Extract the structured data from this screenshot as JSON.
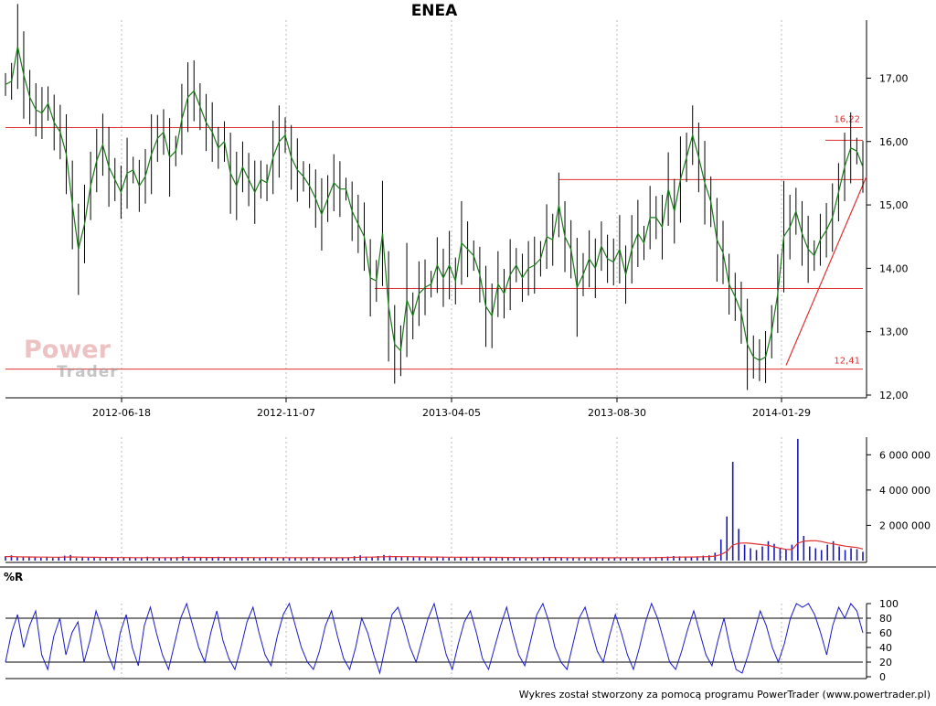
{
  "title": "ENEA",
  "footer": "Wykres został stworzony za pomocą programu PowerTrader (www.powertrader.pl)",
  "logo": {
    "line1": "Power",
    "line2": "Trader"
  },
  "williams_label": "%R",
  "colors": {
    "price": "#000000",
    "price_smooth": "#1a7a1a",
    "level": "#e03030",
    "volume": "#1a1ab4",
    "volume_avg": "#e03030",
    "williams": "#1a1acc",
    "grid": "#b8b8b8"
  },
  "chart_data": [
    {
      "type": "line",
      "name": "price",
      "x_ticks": [
        "2012-06-18",
        "2012-11-07",
        "2013-04-05",
        "2013-08-30",
        "2014-01-29"
      ],
      "y_ticks": [
        "12,00",
        "13,00",
        "14,00",
        "15,00",
        "16,00",
        "17,00"
      ],
      "ylim": [
        12.0,
        17.8
      ],
      "level_labels": [
        "16,22",
        "12,41"
      ],
      "series": [
        {
          "close": [
            16.9,
            16.95,
            17.5,
            17.05,
            16.7,
            16.5,
            16.45,
            16.6,
            16.3,
            16.15,
            15.8,
            15.0,
            14.3,
            14.7,
            15.3,
            15.7,
            15.95,
            15.6,
            15.4,
            15.2,
            15.5,
            15.55,
            15.3,
            15.45,
            15.8,
            16.05,
            16.15,
            15.75,
            15.85,
            16.35,
            16.7,
            16.8,
            16.55,
            16.3,
            16.15,
            15.9,
            16.0,
            15.5,
            15.3,
            15.6,
            15.4,
            15.2,
            15.4,
            15.35,
            15.75,
            16.0,
            16.1,
            15.75,
            15.55,
            15.45,
            15.3,
            15.1,
            14.85,
            15.1,
            15.35,
            15.25,
            15.25,
            14.9,
            14.7,
            14.5,
            13.85,
            13.8,
            14.55,
            13.4,
            12.8,
            12.7,
            13.5,
            13.25,
            13.6,
            13.7,
            13.75,
            14.05,
            13.85,
            14.05,
            13.8,
            14.4,
            14.3,
            14.2,
            13.9,
            13.4,
            13.25,
            13.75,
            13.6,
            13.9,
            14.05,
            13.85,
            14.0,
            14.05,
            14.15,
            14.5,
            14.45,
            15.0,
            14.5,
            14.3,
            13.7,
            13.9,
            14.15,
            14.0,
            14.35,
            14.15,
            14.1,
            14.3,
            13.9,
            14.3,
            14.55,
            14.4,
            14.8,
            14.8,
            14.65,
            15.25,
            14.9,
            15.4,
            15.75,
            16.1,
            15.75,
            15.35,
            15.05,
            14.45,
            14.25,
            13.75,
            13.55,
            13.3,
            12.8,
            12.6,
            12.55,
            12.6,
            13.0,
            13.6,
            14.5,
            14.65,
            14.9,
            14.55,
            14.3,
            14.2,
            14.45,
            14.6,
            14.8,
            15.2,
            15.6,
            15.9,
            15.85,
            15.6
          ]
        },
        {
          "name": "",
          "values": []
        }
      ]
    },
    {
      "type": "bar",
      "name": "volume",
      "y_ticks": [
        "2 000 000",
        "4 000 000",
        "6 000 000"
      ],
      "ylim": [
        0,
        7000000
      ],
      "values": [
        250000,
        300000,
        200000,
        180000,
        220000,
        190000,
        160000,
        210000,
        150000,
        200000,
        280000,
        320000,
        150000,
        200000,
        170000,
        160000,
        140000,
        200000,
        170000,
        150000,
        190000,
        160000,
        150000,
        140000,
        220000,
        170000,
        150000,
        180000,
        160000,
        200000,
        250000,
        210000,
        190000,
        160000,
        150000,
        180000,
        220000,
        150000,
        170000,
        160000,
        200000,
        180000,
        150000,
        170000,
        190000,
        160000,
        140000,
        170000,
        150000,
        180000,
        160000,
        150000,
        200000,
        170000,
        160000,
        150000,
        140000,
        170000,
        190000,
        250000,
        300000,
        220000,
        200000,
        260000,
        320000,
        280000,
        240000,
        200000,
        210000,
        190000,
        180000,
        170000,
        160000,
        200000,
        190000,
        170000,
        160000,
        180000,
        200000,
        220000,
        190000,
        170000,
        160000,
        150000,
        180000,
        170000,
        160000,
        150000,
        140000,
        160000,
        180000,
        210000,
        190000,
        170000,
        160000,
        150000,
        170000,
        160000,
        150000,
        140000,
        160000,
        170000,
        150000,
        160000,
        180000,
        170000,
        160000,
        150000,
        170000,
        190000,
        210000,
        200000,
        230000,
        260000,
        240000,
        220000,
        200000,
        240000,
        280000,
        300000,
        450000,
        1200000,
        2500000,
        5600000,
        1800000,
        900000,
        700000,
        600000,
        800000,
        1100000,
        950000,
        700000,
        650000,
        900000,
        6900000,
        1400000,
        800000,
        700000,
        600000,
        900000,
        1100000,
        800000,
        600000,
        700000,
        650000,
        500000
      ],
      "avg": [
        230000,
        230000,
        220000,
        210000,
        205000,
        200000,
        195000,
        195000,
        190000,
        190000,
        195000,
        205000,
        200000,
        195000,
        190000,
        185000,
        180000,
        178000,
        176000,
        172000,
        172000,
        170000,
        168000,
        166000,
        170000,
        168000,
        165000,
        166000,
        165000,
        168000,
        175000,
        180000,
        182000,
        180000,
        176000,
        175000,
        178000,
        174000,
        172000,
        170000,
        172000,
        172000,
        170000,
        168000,
        170000,
        170000,
        166000,
        166000,
        164000,
        166000,
        165000,
        164000,
        168000,
        168000,
        166000,
        164000,
        162000,
        163000,
        166000,
        175000,
        190000,
        196000,
        198000,
        205000,
        220000,
        226000,
        228000,
        224000,
        222000,
        218000,
        212000,
        206000,
        200000,
        200000,
        198000,
        194000,
        190000,
        188000,
        190000,
        194000,
        194000,
        190000,
        186000,
        182000,
        180000,
        178000,
        175000,
        172000,
        168000,
        166000,
        167000,
        172000,
        174000,
        174000,
        172000,
        168000,
        168000,
        166000,
        164000,
        160000,
        160000,
        162000,
        160000,
        160000,
        163000,
        164000,
        164000,
        162000,
        162000,
        166000,
        172000,
        176000,
        182000,
        192000,
        198000,
        202000,
        202000,
        208000,
        218000,
        230000,
        255000,
        340000,
        520000,
        880000,
        980000,
        1000000,
        980000,
        940000,
        900000,
        860000,
        780000,
        700000,
        640000,
        620000,
        980000,
        1100000,
        1120000,
        1130000,
        1080000,
        1000000,
        950000,
        880000,
        820000,
        780000,
        740000,
        660000
      ]
    },
    {
      "type": "line",
      "name": "%R",
      "y_ticks": [
        "0",
        "20",
        "40",
        "60",
        "80",
        "100"
      ],
      "ylim": [
        0,
        100
      ],
      "levels": [
        20,
        80
      ],
      "values": [
        20,
        60,
        85,
        40,
        70,
        90,
        30,
        10,
        55,
        80,
        30,
        60,
        75,
        20,
        50,
        90,
        65,
        30,
        10,
        60,
        85,
        40,
        15,
        70,
        95,
        60,
        30,
        10,
        45,
        80,
        100,
        70,
        40,
        20,
        60,
        90,
        50,
        25,
        10,
        40,
        75,
        95,
        60,
        30,
        15,
        55,
        85,
        100,
        70,
        40,
        20,
        10,
        35,
        70,
        90,
        55,
        25,
        10,
        40,
        80,
        60,
        30,
        5,
        45,
        85,
        95,
        70,
        40,
        20,
        50,
        80,
        100,
        65,
        30,
        10,
        45,
        75,
        90,
        60,
        25,
        10,
        40,
        70,
        95,
        60,
        30,
        15,
        50,
        85,
        100,
        75,
        40,
        20,
        10,
        45,
        80,
        95,
        65,
        35,
        20,
        55,
        85,
        60,
        30,
        10,
        40,
        75,
        100,
        80,
        50,
        20,
        10,
        35,
        65,
        90,
        60,
        30,
        15,
        50,
        80,
        40,
        10,
        5,
        30,
        60,
        90,
        70,
        40,
        20,
        45,
        80,
        100,
        95,
        100,
        85,
        60,
        30,
        70,
        95,
        80,
        100,
        90,
        60
      ]
    }
  ]
}
